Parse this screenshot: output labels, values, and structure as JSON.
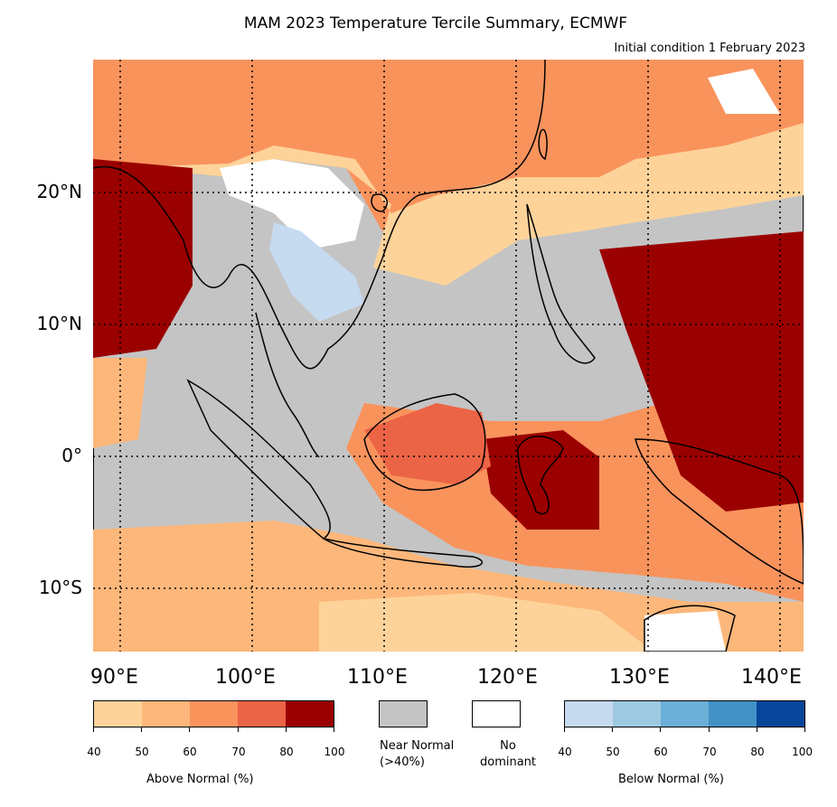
{
  "title": "MAM 2023 Temperature Tercile Summary, ECMWF",
  "subtitle": "Initial condition 1 February 2023",
  "map": {
    "lat_labels": [
      "20°N",
      "10°N",
      "0°",
      "10°S"
    ],
    "lon_labels": [
      "90°E",
      "100°E",
      "110°E",
      "120°E",
      "130°E",
      "140°E"
    ],
    "gridline_style": "dotted",
    "colors": {
      "ocean_near_normal": "#c4c4c4",
      "no_dominant": "#ffffff",
      "coastline": "#000000"
    }
  },
  "legend": {
    "above_normal": {
      "title": "Above Normal (%)",
      "ticks": [
        "40",
        "50",
        "60",
        "70",
        "80",
        "100"
      ],
      "colors": [
        "#fdd39a",
        "#fdb77a",
        "#f9935c",
        "#ec6446",
        "#9b0000"
      ]
    },
    "near_normal": {
      "label_line1": "Near Normal",
      "label_line2": "(>40%)",
      "color": "#c4c4c4"
    },
    "no_dominant": {
      "label_line1": "No",
      "label_line2": "dominant",
      "color": "#ffffff"
    },
    "below_normal": {
      "title": "Below Normal (%)",
      "ticks": [
        "40",
        "50",
        "60",
        "70",
        "80",
        "100"
      ],
      "colors": [
        "#c6daf0",
        "#9ecae1",
        "#6baed6",
        "#4292c6",
        "#08459a"
      ]
    }
  }
}
